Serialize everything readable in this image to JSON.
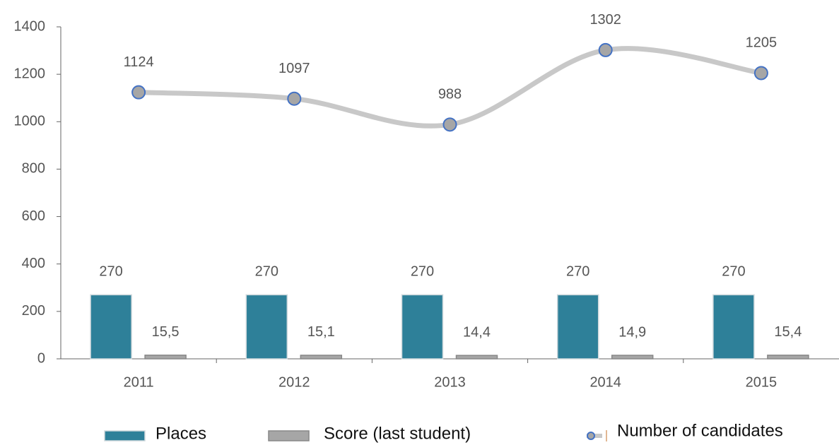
{
  "chart_data": {
    "type": "bar",
    "categories": [
      "2011",
      "2012",
      "2013",
      "2014",
      "2015"
    ],
    "series": [
      {
        "name": "Places",
        "type": "bar",
        "color": "#2e8099",
        "values": [
          270,
          270,
          270,
          270,
          270
        ]
      },
      {
        "name": "Score (last student)",
        "type": "bar",
        "color": "#a6a6a6",
        "values": [
          15.5,
          15.1,
          14.4,
          14.9,
          15.4
        ],
        "value_labels": [
          "15,5",
          "15,1",
          "14,4",
          "14,9",
          "15,4"
        ]
      },
      {
        "name": "Number of candidates",
        "type": "line",
        "color": "#c8c8c8",
        "values": [
          1124,
          1097,
          988,
          1302,
          1205
        ]
      }
    ],
    "ylim": [
      0,
      1400
    ],
    "yticks": [
      0,
      200,
      400,
      600,
      800,
      1000,
      1200,
      1400
    ],
    "legend": "bottom"
  }
}
